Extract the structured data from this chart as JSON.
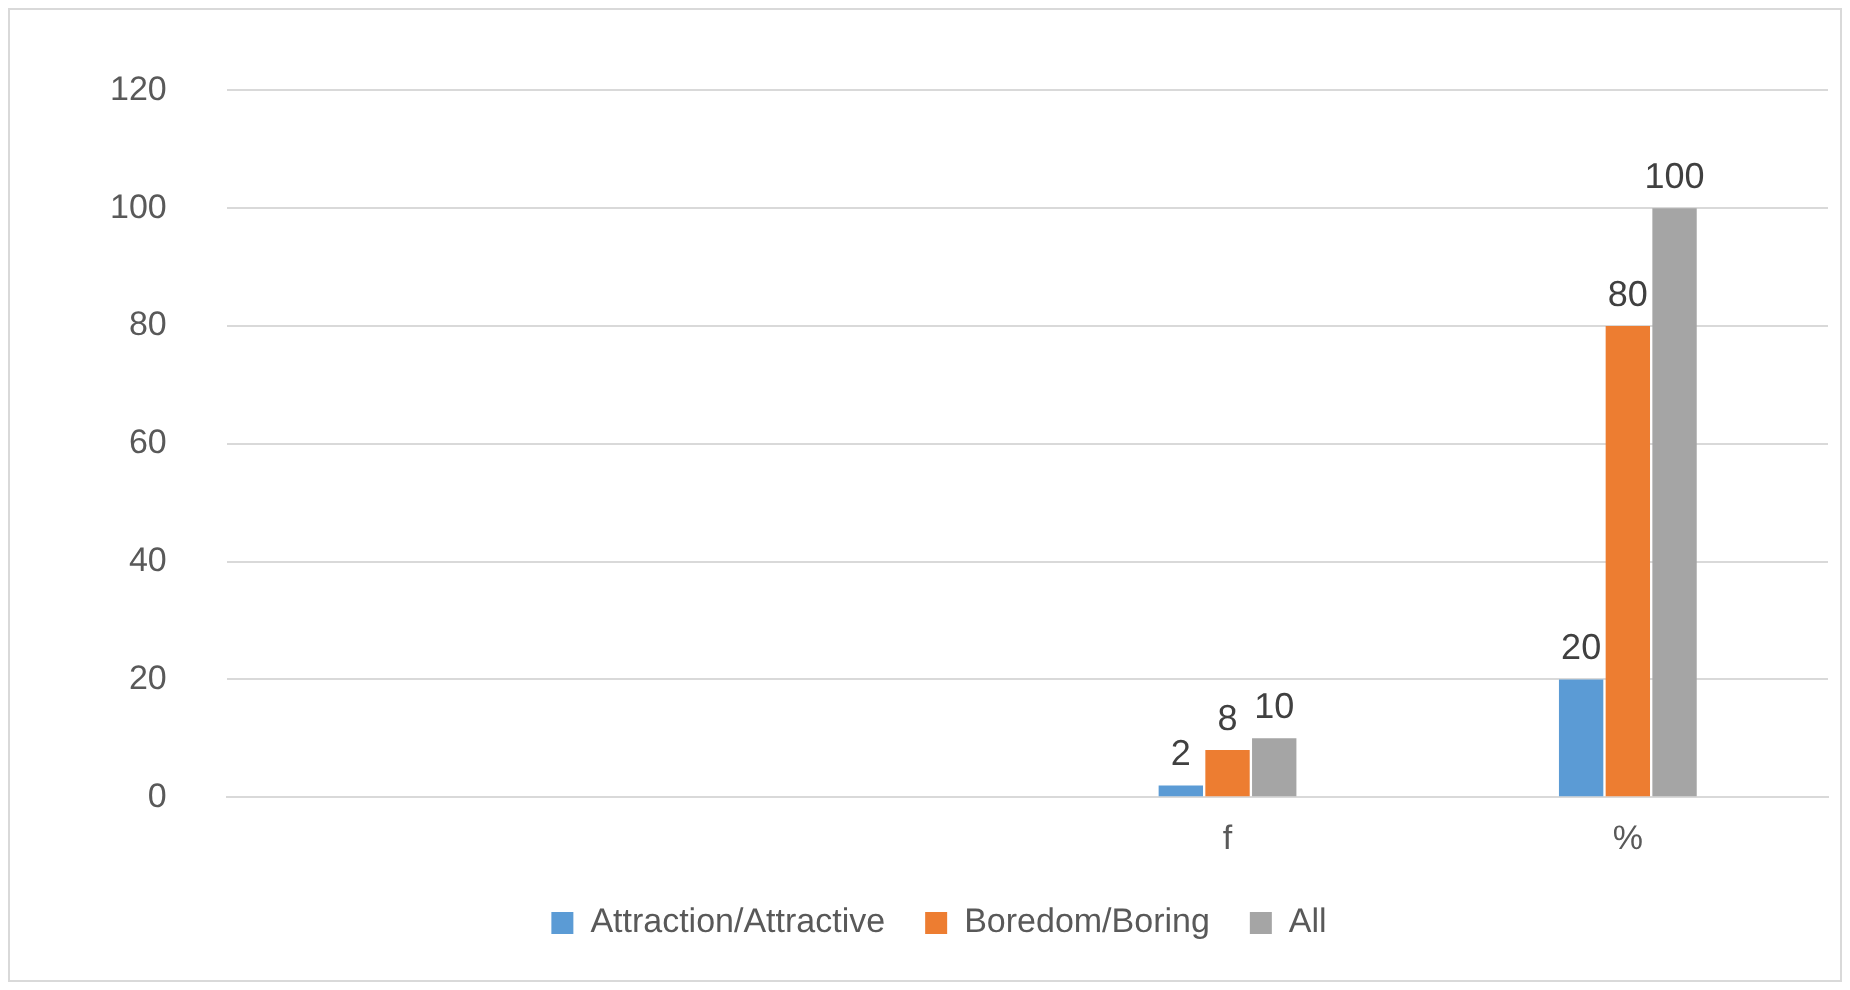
{
  "chart_data": {
    "type": "bar",
    "categories": [
      null,
      null,
      "f",
      "%"
    ],
    "series": [
      {
        "name": "Attraction/Attractive",
        "color": "#5b9bd5",
        "values": [
          null,
          null,
          2,
          20
        ]
      },
      {
        "name": "Boredom/Boring",
        "color": "#ed7d31",
        "values": [
          null,
          null,
          8,
          80
        ]
      },
      {
        "name": "All",
        "color": "#a5a5a5",
        "values": [
          null,
          null,
          10,
          100
        ]
      }
    ],
    "ylim": [
      0,
      120
    ],
    "yticks": [
      0,
      20,
      40,
      60,
      80,
      100,
      120
    ],
    "grid": "y",
    "legend": "bottom",
    "data_labels": true
  }
}
